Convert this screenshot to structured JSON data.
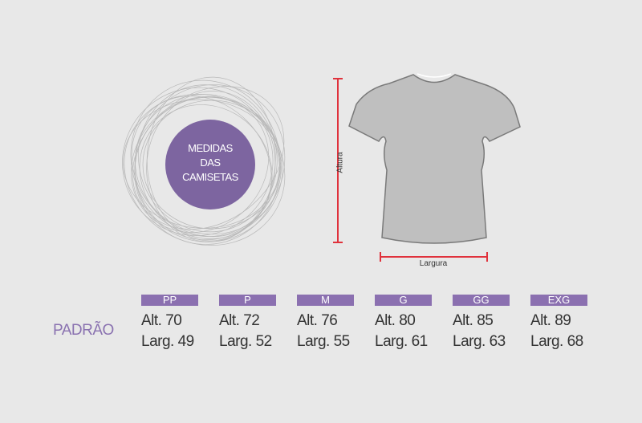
{
  "badge": {
    "lines": [
      "MEDIDAS",
      "DAS",
      "CAMISETAS"
    ]
  },
  "diagram": {
    "height_label": "Altura",
    "width_label": "Largura"
  },
  "table": {
    "row_label": "PADRÃO",
    "sizes": [
      {
        "size": "PP",
        "alt": "Alt. 70",
        "larg": "Larg. 49"
      },
      {
        "size": "P",
        "alt": "Alt. 72",
        "larg": "Larg. 52"
      },
      {
        "size": "M",
        "alt": "Alt. 76",
        "larg": "Larg. 55"
      },
      {
        "size": "G",
        "alt": "Alt. 80",
        "larg": "Larg. 61"
      },
      {
        "size": "GG",
        "alt": "Alt. 85",
        "larg": "Larg. 63"
      },
      {
        "size": "EXG",
        "alt": "Alt. 89",
        "larg": "Larg. 68"
      }
    ]
  },
  "colors": {
    "accent": "#8b70b0",
    "measure_line": "#e0323c",
    "background": "#e8e8e8",
    "shirt": "#bfbfbf"
  }
}
